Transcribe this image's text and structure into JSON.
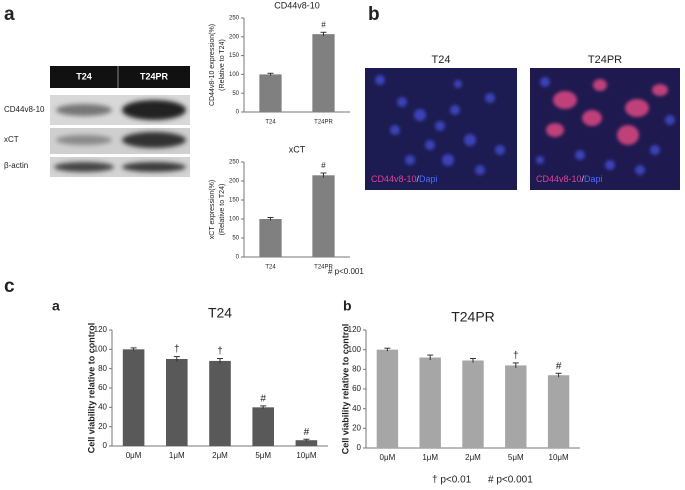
{
  "panel_labels": [
    "a",
    "b",
    "c",
    "a",
    "b"
  ],
  "blot": {
    "columns": [
      "T24",
      "T24PR"
    ],
    "rows": [
      "CD44v8-10",
      "xCT",
      "β-actin"
    ]
  },
  "micrographs": [
    {
      "title": "T24",
      "stain_label": [
        "CD44v8-10",
        "/",
        "Dapi"
      ]
    },
    {
      "title": "T24PR",
      "stain_label": [
        "CD44v8-10",
        "/",
        "Dapi"
      ]
    }
  ],
  "chart_data": [
    {
      "type": "bar",
      "title": "CD44v8-10",
      "ylabel": [
        "CD44v8-10 expression(%)",
        "(Relative to T24)"
      ],
      "categories": [
        "T24",
        "T24PR"
      ],
      "values": [
        100,
        207
      ],
      "errors": [
        3,
        5
      ],
      "annotations": [
        null,
        "#"
      ],
      "color": "#808080",
      "ylim": [
        0,
        250
      ],
      "yticks": [
        0,
        50,
        100,
        150,
        200,
        250
      ]
    },
    {
      "type": "bar",
      "title": "xCT",
      "ylabel": [
        "xCT expression(%)",
        "(Relative to T24)"
      ],
      "categories": [
        "T24",
        "T24PR"
      ],
      "values": [
        100,
        215
      ],
      "errors": [
        4,
        6
      ],
      "annotations": [
        null,
        "#"
      ],
      "color": "#808080",
      "ylim": [
        0,
        250
      ],
      "yticks": [
        0,
        50,
        100,
        150,
        200,
        250
      ]
    },
    {
      "type": "bar",
      "title": "T24",
      "ylabel": [
        "Cell viability relative to control"
      ],
      "categories": [
        "0μM",
        "1μM",
        "2μM",
        "5μM",
        "10μM"
      ],
      "values": [
        100,
        90,
        88,
        40,
        6
      ],
      "errors": [
        1.5,
        2.5,
        2.5,
        1.5,
        1
      ],
      "annotations": [
        null,
        "†",
        "†",
        "#",
        "#"
      ],
      "color": "#595959",
      "ylim": [
        0,
        120
      ],
      "yticks": [
        0,
        20,
        40,
        60,
        80,
        100,
        120
      ]
    },
    {
      "type": "bar",
      "title": "T24PR",
      "ylabel": [
        "Cell viability relative to control"
      ],
      "categories": [
        "0μM",
        "1μM",
        "2μM",
        "5μM",
        "10μM"
      ],
      "values": [
        100,
        92,
        89,
        84,
        74
      ],
      "errors": [
        1.5,
        2.5,
        2,
        2.5,
        2
      ],
      "annotations": [
        null,
        null,
        null,
        "†",
        "#"
      ],
      "color": "#a6a6a6",
      "ylim": [
        0,
        120
      ],
      "yticks": [
        0,
        20,
        40,
        60,
        80,
        100,
        120
      ]
    }
  ],
  "footnotes": [
    "# p<0.001",
    "† p<0.01",
    "#  p<0.001"
  ]
}
